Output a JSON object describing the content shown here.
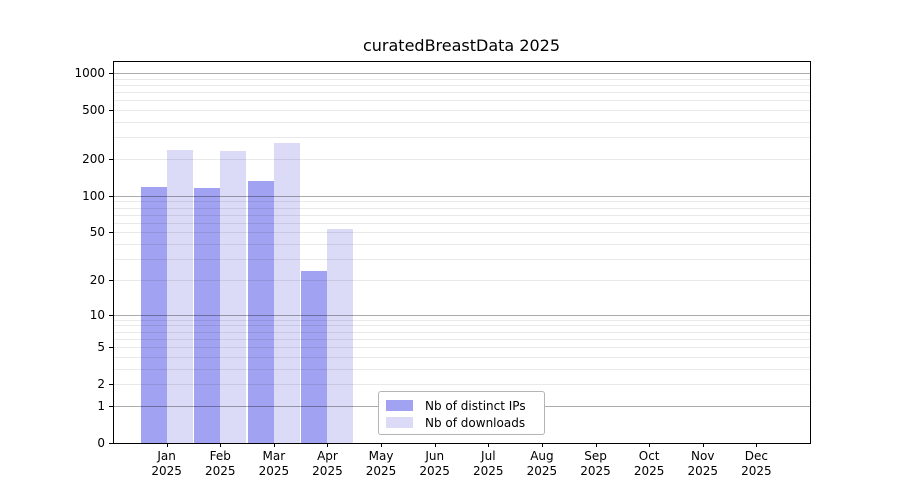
{
  "title": "curatedBreastData 2025",
  "chart_data": {
    "type": "bar",
    "title": "curatedBreastData 2025",
    "x_months": [
      "Jan",
      "Feb",
      "Mar",
      "Apr",
      "May",
      "Jun",
      "Jul",
      "Aug",
      "Sep",
      "Oct",
      "Nov",
      "Dec"
    ],
    "x_year": "2025",
    "series": [
      {
        "name": "Nb of distinct IPs",
        "color": "#a2a2f2",
        "values": [
          118,
          115,
          133,
          24,
          0,
          0,
          0,
          0,
          0,
          0,
          0,
          0
        ]
      },
      {
        "name": "Nb of downloads",
        "color": "#dbdbf8",
        "values": [
          236,
          232,
          268,
          53,
          0,
          0,
          0,
          0,
          0,
          0,
          0,
          0
        ]
      }
    ],
    "yscale": "log1p",
    "y_ticks": [
      0,
      1,
      2,
      5,
      10,
      20,
      50,
      100,
      200,
      500,
      1000
    ],
    "y_minor_ticks": [
      3,
      4,
      6,
      7,
      8,
      9,
      30,
      40,
      60,
      70,
      80,
      90,
      300,
      400,
      600,
      700,
      800,
      900
    ],
    "y_major_gridlines": [
      1,
      10,
      100,
      1000
    ],
    "ylim": [
      0,
      1250
    ],
    "grid": true,
    "legend_position": "lower-center-inside"
  },
  "legend": {
    "items": [
      {
        "label": "Nb of distinct IPs"
      },
      {
        "label": "Nb of downloads"
      }
    ]
  }
}
